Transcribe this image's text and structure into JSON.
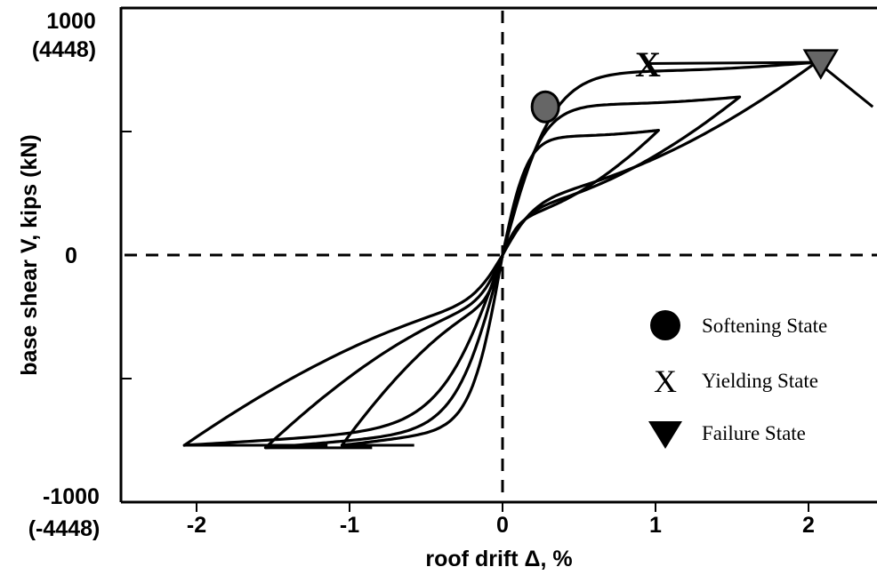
{
  "chart_data": {
    "type": "line",
    "xlabel": "roof drift Δ, %",
    "ylabel": "base shear V, kips (kN)",
    "xlim": [
      -2.5,
      2.45
    ],
    "ylim": [
      -1000,
      1000
    ],
    "x_ticks": [
      {
        "value": -2,
        "label": "-2"
      },
      {
        "value": -1,
        "label": "-1"
      },
      {
        "value": 0,
        "label": "0"
      },
      {
        "value": 1,
        "label": "1"
      },
      {
        "value": 2,
        "label": "2"
      }
    ],
    "y_tick_labels": [
      {
        "value": 1000,
        "label": "1000",
        "sublabel": "(4448)"
      },
      {
        "value": 0,
        "label": "0",
        "sublabel": ""
      },
      {
        "value": -1000,
        "label": "-1000",
        "sublabel": "(-4448)"
      }
    ],
    "y_minor_ticks": [
      500,
      -500
    ],
    "zero_lines": "dashed",
    "grid": false,
    "loops": [
      {
        "amp": 0.52,
        "x_pos": 1.02,
        "y_pos_peak": 505,
        "x_neg": -1.05,
        "y_neg_peak": -770
      },
      {
        "amp": 0.82,
        "x_pos": 1.55,
        "y_pos_peak": 640,
        "x_neg": -1.55,
        "y_neg_peak": -780
      },
      {
        "amp": 1.0,
        "x_pos": 2.05,
        "y_pos_peak": 780,
        "x_neg": -2.08,
        "y_neg_peak": -770
      }
    ],
    "envelope_tail": {
      "x": [
        2.06,
        2.42
      ],
      "y": [
        780,
        600
      ]
    },
    "series": [
      {
        "x": [
          0,
          0.05,
          0.1,
          0.18,
          0.28,
          0.4,
          0.55,
          0.75,
          0.95,
          1.2,
          1.5,
          1.8,
          2.05,
          2.42
        ],
        "y": [
          0,
          200,
          360,
          500,
          580,
          640,
          690,
          730,
          755,
          770,
          775,
          778,
          780,
          600
        ]
      }
    ],
    "markers": [
      {
        "state": "Softening State",
        "shape": "circle",
        "x": 0.28,
        "y": 600,
        "color": "#666666"
      },
      {
        "state": "Yielding State",
        "shape": "x",
        "x": 0.95,
        "y": 770,
        "color": "#000000"
      },
      {
        "state": "Failure State",
        "shape": "triangle-down",
        "x": 2.08,
        "y": 780,
        "color": "#666666"
      }
    ],
    "legend": {
      "placement": "lower-right",
      "entries": [
        {
          "label": "Softening State",
          "symbol": "circle"
        },
        {
          "label": "Yielding State",
          "symbol": "x"
        },
        {
          "label": "Failure State",
          "symbol": "triangle-down"
        }
      ]
    }
  }
}
